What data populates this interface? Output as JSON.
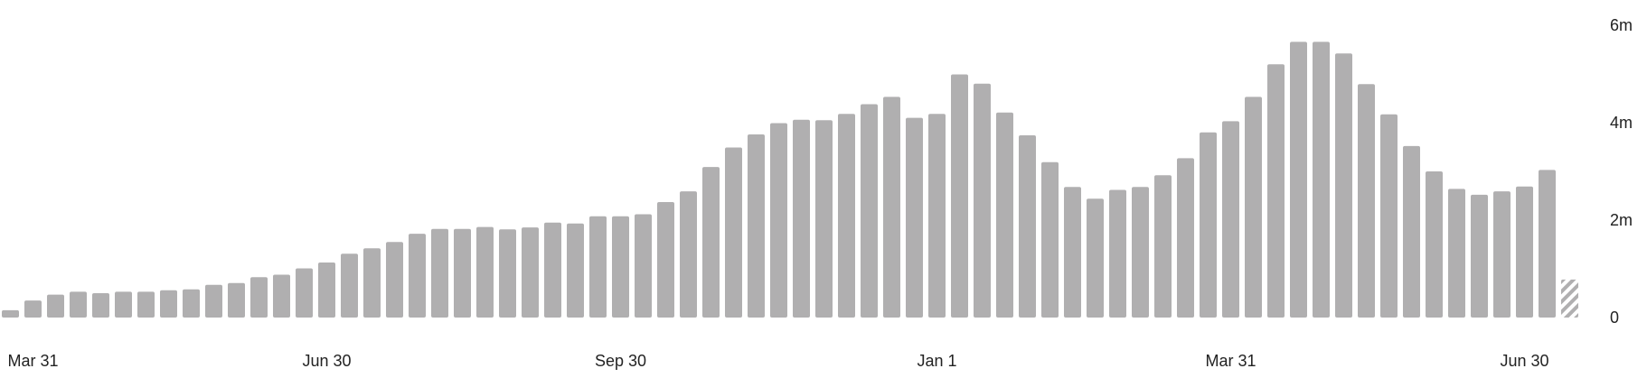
{
  "chart_data": {
    "type": "bar",
    "title": "",
    "xlabel": "",
    "ylabel": "",
    "ylim": [
      0,
      6000000
    ],
    "y_ticks": [
      {
        "value": 0,
        "label": "0"
      },
      {
        "value": 2000000,
        "label": "2m"
      },
      {
        "value": 4000000,
        "label": "4m"
      },
      {
        "value": 6000000,
        "label": "6m"
      }
    ],
    "x_tick_labels": [
      {
        "index": 1,
        "label": "Mar 31"
      },
      {
        "index": 14,
        "label": "Jun 30"
      },
      {
        "index": 27,
        "label": "Sep 30"
      },
      {
        "index": 41,
        "label": "Jan 1"
      },
      {
        "index": 54,
        "label": "Mar 31"
      },
      {
        "index": 67,
        "label": "Jun 30"
      }
    ],
    "bar_color": "#b0afb0",
    "partial_bar_color": "#b0afb0",
    "values": [
      150000,
      350000,
      470000,
      530000,
      500000,
      530000,
      530000,
      560000,
      580000,
      670000,
      710000,
      830000,
      880000,
      1010000,
      1130000,
      1310000,
      1420000,
      1550000,
      1720000,
      1820000,
      1820000,
      1860000,
      1810000,
      1850000,
      1950000,
      1930000,
      2080000,
      2080000,
      2120000,
      2370000,
      2590000,
      3090000,
      3490000,
      3760000,
      3990000,
      4060000,
      4050000,
      4180000,
      4380000,
      4530000,
      4100000,
      4180000,
      4990000,
      4800000,
      4210000,
      3740000,
      3190000,
      2680000,
      2440000,
      2620000,
      2680000,
      2920000,
      3270000,
      3800000,
      4030000,
      4530000,
      5200000,
      5660000,
      5660000,
      5420000,
      4790000,
      4170000,
      3520000,
      3000000,
      2640000,
      2520000,
      2590000,
      2690000,
      3030000,
      780000
    ],
    "partial_last": true
  }
}
